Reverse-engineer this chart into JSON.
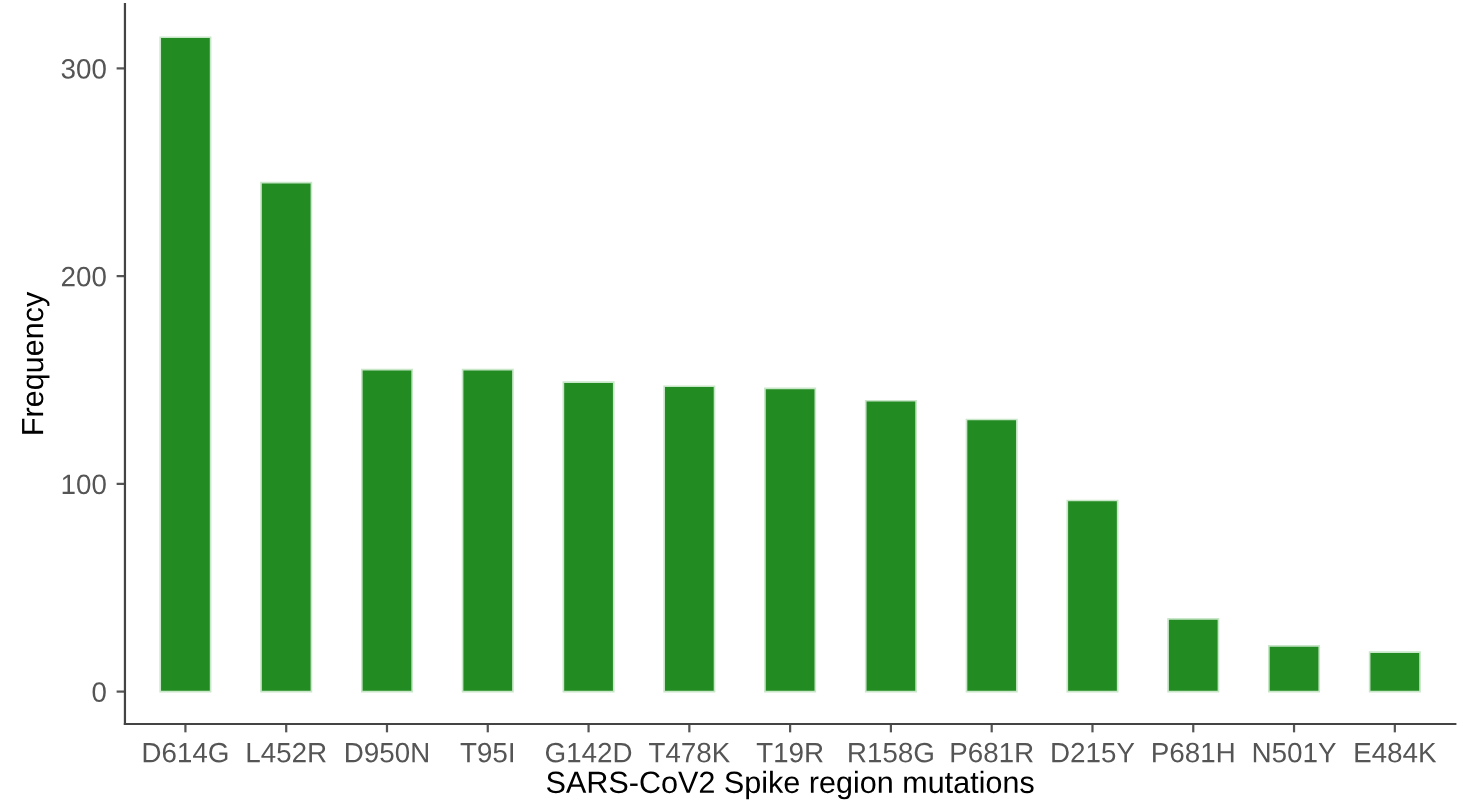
{
  "chart_data": {
    "type": "bar",
    "xlabel": "SARS-CoV2 Spike region mutations",
    "ylabel": "Frequency",
    "categories": [
      "D614G",
      "L452R",
      "D950N",
      "T95I",
      "G142D",
      "T478K",
      "T19R",
      "R158G",
      "P681R",
      "D215Y",
      "P681H",
      "N501Y",
      "E484K"
    ],
    "values": [
      315,
      245,
      155,
      155,
      149,
      147,
      146,
      140,
      131,
      92,
      35,
      22,
      19
    ],
    "color": "#228b22",
    "ylim": [
      -15.6,
      331
    ],
    "yticks": [
      0,
      100,
      200,
      300
    ],
    "grid": false,
    "legend": false
  }
}
